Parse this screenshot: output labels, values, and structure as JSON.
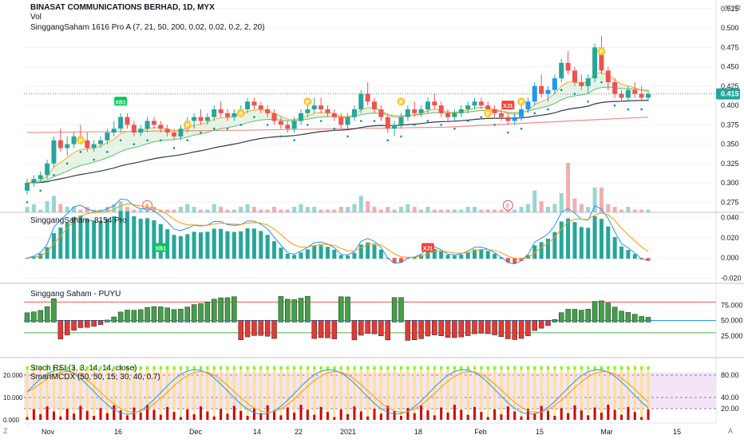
{
  "header": {
    "title": "BINASAT COMMUNICATIONS BERHAD, 1D, MYX",
    "vol_label": "Vol",
    "indicator1": "SinggangSaham 1616 Pro A  (7, 21, 50, 200, 0.02, 0.02, 0.2, 2, 20)",
    "currency": "MYR"
  },
  "panels": {
    "p2_label": "SinggangSaham- 8154 Pro",
    "p3_label": "Singgang Saham - PUYU",
    "p4_label1": "Stoch RSI (3, 3, 14, 14, close)",
    "p4_label2": "SmartMCDX (50, 50, 15, 30, 40, 0.7)"
  },
  "corners": {
    "left": "Z",
    "right": "A"
  },
  "colors": {
    "bull": "#26a69a",
    "bear": "#ef5350",
    "blue_bull": "#2196f3",
    "dark_bull": "#1b5e20",
    "line_red": "#f44336",
    "line_dark": "#363a45",
    "line_orange": "#ff9800",
    "line_blue": "#2196f3",
    "dots_green": "#009688",
    "dots_orange": "#ffa000",
    "price_badge": "#26a69a",
    "purple": "#e1bee7"
  },
  "chart_data": [
    {
      "type": "candlestick",
      "title": "BINASAT COMMUNICATIONS BERHAD, 1D, MYX",
      "y_ticks": [
        "0.525",
        "0.500",
        "0.475",
        "0.450",
        "0.425",
        "0.400",
        "0.375",
        "0.350",
        "0.325",
        "0.300",
        "0.275"
      ],
      "ylim": [
        0.262,
        0.53
      ],
      "last_price": "0.415",
      "x_ticks": [
        "Nov",
        "16",
        "Dec",
        "14",
        "22",
        "2021",
        "18",
        "Feb",
        "15",
        "Mar",
        "15"
      ],
      "volume_axis": "Vol",
      "markers": {
        "P": "P",
        "XB1": "XB1",
        "XJ1": "XJ1",
        "E": "E"
      },
      "candles": [
        [
          0.29,
          0.305,
          0.285,
          0.3
        ],
        [
          0.3,
          0.31,
          0.295,
          0.305
        ],
        [
          0.305,
          0.315,
          0.3,
          0.31
        ],
        [
          0.31,
          0.33,
          0.305,
          0.325
        ],
        [
          0.325,
          0.36,
          0.32,
          0.355
        ],
        [
          0.355,
          0.37,
          0.34,
          0.345
        ],
        [
          0.345,
          0.36,
          0.335,
          0.35
        ],
        [
          0.35,
          0.365,
          0.345,
          0.36
        ],
        [
          0.36,
          0.375,
          0.35,
          0.355
        ],
        [
          0.355,
          0.365,
          0.34,
          0.345
        ],
        [
          0.345,
          0.355,
          0.34,
          0.35
        ],
        [
          0.35,
          0.36,
          0.345,
          0.355
        ],
        [
          0.355,
          0.37,
          0.35,
          0.365
        ],
        [
          0.365,
          0.38,
          0.36,
          0.37
        ],
        [
          0.37,
          0.39,
          0.365,
          0.385
        ],
        [
          0.385,
          0.39,
          0.37,
          0.375
        ],
        [
          0.375,
          0.38,
          0.36,
          0.365
        ],
        [
          0.365,
          0.375,
          0.36,
          0.37
        ],
        [
          0.37,
          0.385,
          0.365,
          0.38
        ],
        [
          0.38,
          0.385,
          0.37,
          0.375
        ],
        [
          0.375,
          0.38,
          0.365,
          0.37
        ],
        [
          0.37,
          0.375,
          0.36,
          0.365
        ],
        [
          0.365,
          0.37,
          0.355,
          0.36
        ],
        [
          0.36,
          0.375,
          0.355,
          0.37
        ],
        [
          0.37,
          0.385,
          0.365,
          0.38
        ],
        [
          0.38,
          0.39,
          0.37,
          0.385
        ],
        [
          0.385,
          0.395,
          0.375,
          0.38
        ],
        [
          0.38,
          0.39,
          0.375,
          0.385
        ],
        [
          0.385,
          0.4,
          0.38,
          0.395
        ],
        [
          0.395,
          0.405,
          0.385,
          0.39
        ],
        [
          0.39,
          0.395,
          0.38,
          0.385
        ],
        [
          0.385,
          0.395,
          0.38,
          0.39
        ],
        [
          0.39,
          0.4,
          0.385,
          0.395
        ],
        [
          0.395,
          0.41,
          0.39,
          0.405
        ],
        [
          0.405,
          0.41,
          0.395,
          0.4
        ],
        [
          0.4,
          0.405,
          0.39,
          0.395
        ],
        [
          0.395,
          0.4,
          0.385,
          0.39
        ],
        [
          0.39,
          0.395,
          0.375,
          0.38
        ],
        [
          0.38,
          0.385,
          0.37,
          0.375
        ],
        [
          0.375,
          0.38,
          0.365,
          0.37
        ],
        [
          0.37,
          0.385,
          0.365,
          0.38
        ],
        [
          0.38,
          0.395,
          0.375,
          0.39
        ],
        [
          0.39,
          0.4,
          0.385,
          0.395
        ],
        [
          0.395,
          0.41,
          0.39,
          0.4
        ],
        [
          0.4,
          0.41,
          0.39,
          0.395
        ],
        [
          0.395,
          0.4,
          0.385,
          0.39
        ],
        [
          0.39,
          0.395,
          0.38,
          0.385
        ],
        [
          0.385,
          0.39,
          0.37,
          0.375
        ],
        [
          0.375,
          0.39,
          0.37,
          0.385
        ],
        [
          0.385,
          0.4,
          0.38,
          0.395
        ],
        [
          0.395,
          0.42,
          0.39,
          0.415
        ],
        [
          0.415,
          0.43,
          0.4,
          0.405
        ],
        [
          0.405,
          0.41,
          0.39,
          0.395
        ],
        [
          0.395,
          0.4,
          0.38,
          0.385
        ],
        [
          0.385,
          0.39,
          0.365,
          0.37
        ],
        [
          0.37,
          0.38,
          0.36,
          0.375
        ],
        [
          0.375,
          0.39,
          0.37,
          0.385
        ],
        [
          0.385,
          0.4,
          0.38,
          0.395
        ],
        [
          0.395,
          0.405,
          0.385,
          0.39
        ],
        [
          0.39,
          0.4,
          0.385,
          0.395
        ],
        [
          0.395,
          0.41,
          0.39,
          0.405
        ],
        [
          0.405,
          0.415,
          0.395,
          0.4
        ],
        [
          0.4,
          0.405,
          0.385,
          0.39
        ],
        [
          0.39,
          0.395,
          0.38,
          0.385
        ],
        [
          0.385,
          0.395,
          0.38,
          0.39
        ],
        [
          0.39,
          0.4,
          0.385,
          0.395
        ],
        [
          0.395,
          0.405,
          0.39,
          0.4
        ],
        [
          0.4,
          0.41,
          0.395,
          0.405
        ],
        [
          0.405,
          0.41,
          0.395,
          0.4
        ],
        [
          0.4,
          0.405,
          0.39,
          0.395
        ],
        [
          0.395,
          0.4,
          0.385,
          0.39
        ],
        [
          0.39,
          0.395,
          0.38,
          0.385
        ],
        [
          0.385,
          0.39,
          0.375,
          0.38
        ],
        [
          0.38,
          0.39,
          0.375,
          0.385
        ],
        [
          0.385,
          0.4,
          0.38,
          0.395
        ],
        [
          0.395,
          0.41,
          0.39,
          0.405
        ],
        [
          0.405,
          0.43,
          0.4,
          0.425
        ],
        [
          0.425,
          0.44,
          0.41,
          0.415
        ],
        [
          0.415,
          0.425,
          0.405,
          0.42
        ],
        [
          0.42,
          0.44,
          0.415,
          0.435
        ],
        [
          0.435,
          0.46,
          0.43,
          0.455
        ],
        [
          0.455,
          0.47,
          0.44,
          0.445
        ],
        [
          0.445,
          0.45,
          0.425,
          0.43
        ],
        [
          0.43,
          0.44,
          0.42,
          0.425
        ],
        [
          0.425,
          0.44,
          0.415,
          0.435
        ],
        [
          0.435,
          0.48,
          0.43,
          0.475
        ],
        [
          0.475,
          0.49,
          0.44,
          0.445
        ],
        [
          0.445,
          0.45,
          0.42,
          0.43
        ],
        [
          0.43,
          0.435,
          0.41,
          0.415
        ],
        [
          0.415,
          0.42,
          0.405,
          0.41
        ],
        [
          0.41,
          0.425,
          0.405,
          0.42
        ],
        [
          0.42,
          0.43,
          0.41,
          0.415
        ],
        [
          0.415,
          0.425,
          0.405,
          0.41
        ],
        [
          0.41,
          0.42,
          0.405,
          0.415
        ]
      ],
      "volumes": [
        2,
        3,
        1,
        4,
        6,
        3,
        2,
        2,
        1,
        2,
        1,
        1,
        2,
        3,
        4,
        2,
        1,
        1,
        2,
        2,
        1,
        1,
        1,
        2,
        3,
        2,
        1,
        1,
        3,
        2,
        1,
        1,
        2,
        3,
        2,
        1,
        1,
        2,
        1,
        1,
        2,
        3,
        2,
        2,
        1,
        1,
        1,
        2,
        2,
        3,
        6,
        4,
        2,
        1,
        2,
        1,
        2,
        3,
        2,
        1,
        2,
        1,
        1,
        1,
        1,
        1,
        2,
        2,
        1,
        1,
        1,
        1,
        1,
        1,
        2,
        3,
        8,
        4,
        2,
        3,
        7,
        18,
        5,
        3,
        2,
        9,
        9,
        3,
        2,
        1,
        2,
        1,
        1,
        1
      ]
    },
    {
      "type": "line",
      "name": "SinggangSaham- 8154 Pro",
      "y_ticks": [
        "0.040",
        "0.020",
        "0.000",
        "-0.020"
      ],
      "ylim": [
        -0.025,
        0.045
      ],
      "markers": {
        "XB1": "XB1",
        "XJ1": "XJ1"
      }
    },
    {
      "type": "bar",
      "name": "Singgang Saham - PUYU",
      "y_ticks": [
        "75.000",
        "50.000",
        "25.000"
      ],
      "ylim": [
        0,
        100
      ],
      "levels": [
        80,
        50,
        30
      ]
    },
    {
      "type": "line",
      "name": "Stoch RSI (3, 3, 14, 14, close)",
      "y_ticks_left": [
        "20.000",
        "10.000",
        "0.000"
      ],
      "y_ticks_right": [
        "80.00",
        "40.00",
        "20.00"
      ],
      "ylim": [
        0,
        100
      ]
    }
  ]
}
